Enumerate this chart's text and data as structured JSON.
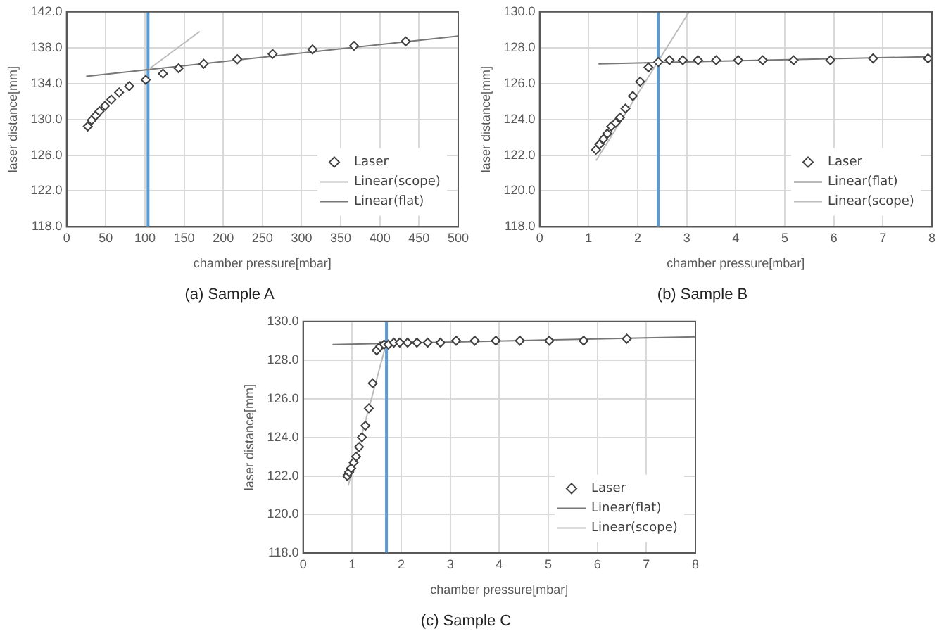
{
  "chart_data": [
    {
      "type": "scatter",
      "title": "(a) Sample A",
      "xlabel": "chamber pressure[mbar]",
      "ylabel": "laser distance[mm]",
      "xlim": [
        0,
        500
      ],
      "xticks": [
        0,
        50,
        100,
        150,
        200,
        250,
        300,
        350,
        400,
        450,
        500
      ],
      "ylim": [
        118,
        142
      ],
      "yticks": [
        {
          "value": 118,
          "label": "118.0"
        },
        {
          "value": 122,
          "label": "122.0"
        },
        {
          "value": 126,
          "label": "126.0"
        },
        {
          "value": 130,
          "label": "130.0"
        },
        {
          "value": 134,
          "label": "134.0"
        },
        {
          "value": 138,
          "label": "138.0"
        },
        {
          "value": 142,
          "label": "142.0"
        }
      ],
      "grid": true,
      "legend": "bottom right",
      "ref_lines": [
        {
          "axis": "x",
          "value": 104,
          "color": "#5b9bd5"
        }
      ],
      "series": [
        {
          "name": "Laser",
          "marker": "diamond",
          "color": "#404040",
          "x": [
            27,
            32,
            37,
            42,
            49,
            57,
            67,
            80,
            101,
            123,
            143,
            175,
            218,
            263,
            314,
            367,
            433
          ],
          "values": [
            129.2,
            129.9,
            130.4,
            130.9,
            131.5,
            132.2,
            133.0,
            133.7,
            134.4,
            135.1,
            135.7,
            136.2,
            136.7,
            137.3,
            137.8,
            138.2,
            138.7
          ]
        },
        {
          "name": "Linear(scope)",
          "type": "line",
          "color": "#bbbbbb",
          "x": [
            105,
            170
          ],
          "values": [
            135.6,
            139.8
          ]
        },
        {
          "name": "Linear(flat)",
          "type": "line",
          "color": "#777777",
          "x": [
            25,
            500
          ],
          "values": [
            134.8,
            139.3
          ]
        }
      ]
    },
    {
      "type": "scatter",
      "title": "(b) Sample B",
      "xlabel": "chamber pressure[mbar]",
      "ylabel": "laser distance[mm]",
      "xlim": [
        0,
        8
      ],
      "xticks": [
        0,
        1,
        2,
        3,
        4,
        5,
        6,
        7,
        8
      ],
      "ylim": [
        118,
        130
      ],
      "yticks": [
        {
          "value": 118,
          "label": "118.0"
        },
        {
          "value": 120,
          "label": "120.0"
        },
        {
          "value": 122,
          "label": "122.0"
        },
        {
          "value": 124,
          "label": "124.0"
        },
        {
          "value": 126,
          "label": "126.0"
        },
        {
          "value": 128,
          "label": "128.0"
        },
        {
          "value": 130,
          "label": "130.0"
        }
      ],
      "grid": true,
      "legend": "bottom right",
      "ref_lines": [
        {
          "axis": "x",
          "value": 2.42,
          "color": "#5b9bd5"
        }
      ],
      "series": [
        {
          "name": "Laser",
          "marker": "diamond",
          "color": "#404040",
          "x": [
            1.15,
            1.22,
            1.3,
            1.38,
            1.46,
            1.55,
            1.64,
            1.75,
            1.9,
            2.05,
            2.22,
            2.42,
            2.65,
            2.92,
            3.23,
            3.6,
            4.05,
            4.55,
            5.18,
            5.93,
            6.8,
            7.92
          ],
          "values": [
            122.3,
            122.6,
            122.9,
            123.2,
            123.6,
            123.8,
            124.1,
            124.6,
            125.3,
            126.1,
            126.9,
            127.2,
            127.3,
            127.3,
            127.3,
            127.3,
            127.3,
            127.3,
            127.3,
            127.3,
            127.4,
            127.4
          ]
        },
        {
          "name": "Linear(flat)",
          "type": "line",
          "color": "#777777",
          "x": [
            1.2,
            8
          ],
          "values": [
            127.1,
            127.5
          ]
        },
        {
          "name": "Linear(scope)",
          "type": "line",
          "color": "#bbbbbb",
          "x": [
            1.15,
            3.05
          ],
          "values": [
            121.7,
            130
          ]
        }
      ]
    },
    {
      "type": "scatter",
      "title": "(c) Sample C",
      "xlabel": "chamber pressure[mbar]",
      "ylabel": "laser distance[mm]",
      "xlim": [
        0,
        8
      ],
      "xticks": [
        0,
        1,
        2,
        3,
        4,
        5,
        6,
        7,
        8
      ],
      "ylim": [
        118,
        130
      ],
      "yticks": [
        {
          "value": 118,
          "label": "118.0"
        },
        {
          "value": 120,
          "label": "120.0"
        },
        {
          "value": 122,
          "label": "122.0"
        },
        {
          "value": 124,
          "label": "124.0"
        },
        {
          "value": 126,
          "label": "126.0"
        },
        {
          "value": 128,
          "label": "128.0"
        },
        {
          "value": 130,
          "label": "130.0"
        }
      ],
      "grid": true,
      "legend": "bottom right",
      "ref_lines": [
        {
          "axis": "x",
          "value": 1.7,
          "color": "#5b9bd5"
        }
      ],
      "series": [
        {
          "name": "Laser",
          "marker": "diamond",
          "color": "#404040",
          "x": [
            0.9,
            0.94,
            0.98,
            1.03,
            1.08,
            1.14,
            1.2,
            1.27,
            1.34,
            1.42,
            1.5,
            1.57,
            1.65,
            1.74,
            1.85,
            1.97,
            2.13,
            2.32,
            2.54,
            2.8,
            3.12,
            3.5,
            3.93,
            4.42,
            5.02,
            5.72,
            6.6
          ],
          "values": [
            122.0,
            122.2,
            122.4,
            122.7,
            123.0,
            123.5,
            124.0,
            124.6,
            125.5,
            126.8,
            128.5,
            128.7,
            128.8,
            128.8,
            128.9,
            128.9,
            128.9,
            128.9,
            128.9,
            128.9,
            129.0,
            129.0,
            129.0,
            129.0,
            129.0,
            129.0,
            129.1
          ]
        },
        {
          "name": "Linear(flat)",
          "type": "line",
          "color": "#777777",
          "x": [
            0.6,
            8
          ],
          "values": [
            128.8,
            129.2
          ]
        },
        {
          "name": "Linear(scope)",
          "type": "line",
          "color": "#bbbbbb",
          "x": [
            0.92,
            1.7
          ],
          "values": [
            121.5,
            128.9
          ]
        }
      ]
    }
  ]
}
